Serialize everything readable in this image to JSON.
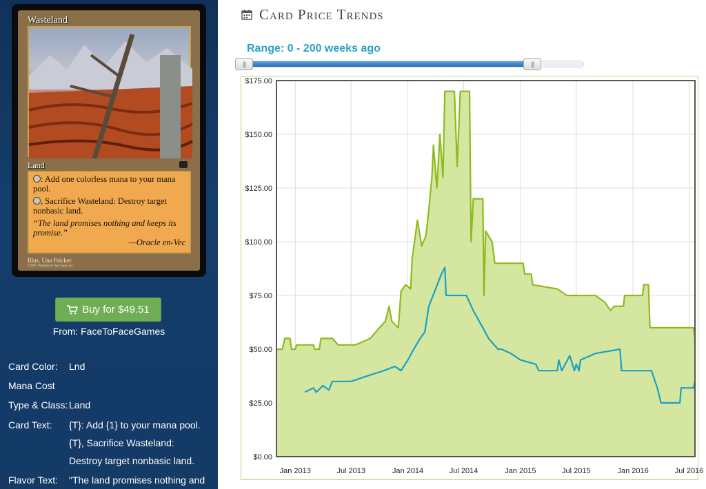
{
  "card": {
    "name": "Wasteland",
    "type_line": "Land",
    "rules": [
      ": Add one colorless mana to your mana pool.",
      ", Sacrifice Wasteland: Destroy target nonbasic land."
    ],
    "flavor": "“The land promises nothing and keeps its promise.”",
    "flavor_attribution": "—Oracle en-Vec",
    "illustrator": "Illus. Una Fricker",
    "copyright": "©1997 Wizards of the Coast, Inc."
  },
  "buy": {
    "label": "Buy for $49.51",
    "icon": "shopping-cart-icon",
    "from": "From: FaceToFaceGames",
    "color": "#6fae55"
  },
  "info": {
    "color_label": "Card Color:",
    "color_value": "Lnd",
    "mana_label": "Mana Cost",
    "mana_value": "",
    "type_label": "Type & Class:",
    "type_value": "Land",
    "text_label": "Card Text:",
    "text_line1": "{T}: Add {1} to your mana pool.",
    "text_line2": "{T}, Sacrifice Wasteland:",
    "text_line3": "Destroy target nonbasic land.",
    "flavor_label": "Flavor Text:",
    "flavor_value": "\"The land promises nothing and"
  },
  "header": {
    "title": "Card Price Trends",
    "icon": "calendar-icon"
  },
  "slider": {
    "label": "Range: 0 - 200 weeks ago",
    "min": 0,
    "max": 200,
    "low": 0,
    "high": 200,
    "fill_fraction": 0.85
  },
  "colors": {
    "sidebar": "#143a66",
    "series1": "#8dbb1c",
    "series1_fill": "#d4e6a0",
    "series2": "#1aa0c4",
    "accent": "#2aa0c8"
  },
  "chart_data": {
    "type": "line",
    "title": "",
    "ylim": [
      0,
      175
    ],
    "xlim": [
      "2012-11-01",
      "2016-07-20"
    ],
    "yticks": [
      "$0.00",
      "$25.00",
      "$50.00",
      "$75.00",
      "$100.00",
      "$125.00",
      "$150.00",
      "$175.00"
    ],
    "xticks": [
      {
        "date": "2013-01-01",
        "label": "Jan 2013"
      },
      {
        "date": "2013-07-01",
        "label": "Jul 2013"
      },
      {
        "date": "2014-01-01",
        "label": "Jan 2014"
      },
      {
        "date": "2014-07-01",
        "label": "Jul 2014"
      },
      {
        "date": "2015-01-01",
        "label": "Jan 2015"
      },
      {
        "date": "2015-07-01",
        "label": "Jul 2015"
      },
      {
        "date": "2016-01-01",
        "label": "Jan 2016"
      },
      {
        "date": "2016-07-01",
        "label": "Jul 2016"
      }
    ],
    "grid": true,
    "series": [
      {
        "color": "#8dbb1c",
        "fill": "#d4e6a0",
        "points": [
          [
            "2012-11-01",
            50
          ],
          [
            "2012-11-20",
            50
          ],
          [
            "2012-11-28",
            55
          ],
          [
            "2012-12-15",
            55
          ],
          [
            "2012-12-20",
            50
          ],
          [
            "2013-01-01",
            50
          ],
          [
            "2013-01-05",
            52
          ],
          [
            "2013-03-01",
            52
          ],
          [
            "2013-03-05",
            50
          ],
          [
            "2013-03-20",
            50
          ],
          [
            "2013-03-25",
            55
          ],
          [
            "2013-05-01",
            55
          ],
          [
            "2013-05-20",
            52
          ],
          [
            "2013-07-15",
            52
          ],
          [
            "2013-09-01",
            55
          ],
          [
            "2013-10-01",
            60
          ],
          [
            "2013-10-20",
            63
          ],
          [
            "2013-11-01",
            70
          ],
          [
            "2013-11-10",
            63
          ],
          [
            "2013-12-01",
            60
          ],
          [
            "2013-12-10",
            77
          ],
          [
            "2013-12-25",
            80
          ],
          [
            "2014-01-10",
            78
          ],
          [
            "2014-01-15",
            92
          ],
          [
            "2014-02-01",
            110
          ],
          [
            "2014-02-15",
            98
          ],
          [
            "2014-03-01",
            103
          ],
          [
            "2014-03-10",
            115
          ],
          [
            "2014-03-20",
            130
          ],
          [
            "2014-03-25",
            145
          ],
          [
            "2014-04-05",
            125
          ],
          [
            "2014-04-15",
            150
          ],
          [
            "2014-04-25",
            130
          ],
          [
            "2014-05-01",
            170
          ],
          [
            "2014-06-01",
            170
          ],
          [
            "2014-06-10",
            135
          ],
          [
            "2014-06-20",
            170
          ],
          [
            "2014-07-20",
            170
          ],
          [
            "2014-07-25",
            100
          ],
          [
            "2014-08-01",
            120
          ],
          [
            "2014-09-01",
            120
          ],
          [
            "2014-09-05",
            75
          ],
          [
            "2014-09-10",
            105
          ],
          [
            "2014-10-01",
            100
          ],
          [
            "2014-10-10",
            90
          ],
          [
            "2015-01-10",
            90
          ],
          [
            "2015-01-15",
            85
          ],
          [
            "2015-02-05",
            85
          ],
          [
            "2015-02-10",
            80
          ],
          [
            "2015-05-01",
            78
          ],
          [
            "2015-06-01",
            75
          ],
          [
            "2015-09-01",
            75
          ],
          [
            "2015-10-01",
            72
          ],
          [
            "2015-10-20",
            68
          ],
          [
            "2015-11-01",
            70
          ],
          [
            "2015-12-01",
            70
          ],
          [
            "2015-12-05",
            75
          ],
          [
            "2016-02-01",
            75
          ],
          [
            "2016-02-05",
            80
          ],
          [
            "2016-02-20",
            80
          ],
          [
            "2016-02-25",
            60
          ],
          [
            "2016-07-15",
            60
          ],
          [
            "2016-07-20",
            55
          ]
        ]
      },
      {
        "color": "#1aa0c4",
        "points": [
          [
            "2013-02-01",
            30
          ],
          [
            "2013-03-01",
            32
          ],
          [
            "2013-03-10",
            30
          ],
          [
            "2013-04-01",
            33
          ],
          [
            "2013-04-20",
            31
          ],
          [
            "2013-05-01",
            35
          ],
          [
            "2013-07-01",
            35
          ],
          [
            "2013-09-01",
            38
          ],
          [
            "2013-10-15",
            40
          ],
          [
            "2013-11-20",
            42
          ],
          [
            "2013-12-10",
            40
          ],
          [
            "2014-01-01",
            45
          ],
          [
            "2014-01-20",
            50
          ],
          [
            "2014-02-10",
            55
          ],
          [
            "2014-02-25",
            58
          ],
          [
            "2014-03-10",
            70
          ],
          [
            "2014-04-01",
            78
          ],
          [
            "2014-04-20",
            85
          ],
          [
            "2014-05-01",
            88
          ],
          [
            "2014-05-05",
            75
          ],
          [
            "2014-07-10",
            75
          ],
          [
            "2014-08-01",
            68
          ],
          [
            "2014-09-01",
            60
          ],
          [
            "2014-09-20",
            55
          ],
          [
            "2014-10-20",
            50
          ],
          [
            "2014-11-01",
            50
          ],
          [
            "2014-12-01",
            48
          ],
          [
            "2015-01-01",
            45
          ],
          [
            "2015-02-20",
            43
          ],
          [
            "2015-03-01",
            40
          ],
          [
            "2015-05-01",
            40
          ],
          [
            "2015-05-05",
            45
          ],
          [
            "2015-05-15",
            40
          ],
          [
            "2015-06-10",
            47
          ],
          [
            "2015-06-25",
            40
          ],
          [
            "2015-07-01",
            43
          ],
          [
            "2015-07-10",
            40
          ],
          [
            "2015-07-15",
            45
          ],
          [
            "2015-09-01",
            48
          ],
          [
            "2015-11-20",
            50
          ],
          [
            "2015-11-25",
            40
          ],
          [
            "2016-03-01",
            40
          ],
          [
            "2016-03-20",
            32
          ],
          [
            "2016-04-01",
            25
          ],
          [
            "2016-06-01",
            25
          ],
          [
            "2016-06-05",
            32
          ],
          [
            "2016-07-15",
            32
          ],
          [
            "2016-07-20",
            35
          ]
        ]
      }
    ]
  }
}
